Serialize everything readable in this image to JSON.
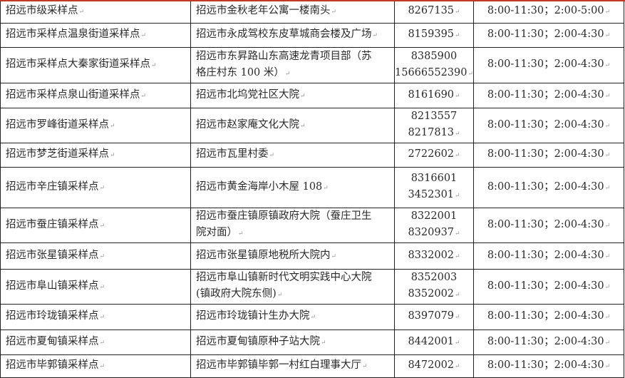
{
  "rows": [
    {
      "site": "招远市级采样点",
      "address": [
        "招远市金秋老年公寓一楼南头"
      ],
      "phone": [
        "8267135"
      ],
      "hours": "8:00-11:30；2:00-5:00"
    },
    {
      "site": "招远市采样点温泉街道采样点",
      "address": [
        "招远市永成驾校东皮草城商会楼及广场"
      ],
      "phone": [
        "8159395"
      ],
      "hours": "8:00-11:30；2:00-4:30"
    },
    {
      "site": "招远市采样点大秦家街道采样点",
      "address": [
        "招远市东昇路山东高速龙青项目部（苏",
        "格庄村东 100 米）"
      ],
      "phone": [
        "8385900",
        "15666552390"
      ],
      "hours": "8:00-11:30；2:00-4:30"
    },
    {
      "site": "招远市采样点泉山街道采样点",
      "address": [
        "招远市北坞党社区大院"
      ],
      "phone": [
        "8161690"
      ],
      "hours": "8:00-11:30；2:00-4:30"
    },
    {
      "site": "招远市罗峰街道采样点",
      "address": [
        "招远市赵家庵文化大院"
      ],
      "phone": [
        "8213557",
        "8217813"
      ],
      "hours": "8:00-11:30；2:00-4:30"
    },
    {
      "site": "招远市梦芝街道采样点",
      "address": [
        "招远市瓦里村委"
      ],
      "phone": [
        "2722602"
      ],
      "hours": "8:00-11:30；2:00-4:30"
    },
    {
      "site": "招远市辛庄镇采样点",
      "address": [
        "招远市黄金海岸小木屋 108"
      ],
      "phone": [
        "8316601",
        "3452301"
      ],
      "hours": "8:00-11:30；2:00-4:30"
    },
    {
      "site": "招远市蚕庄镇采样点",
      "address": [
        "招远市蚕庄镇原镇政府大院（蚕庄卫生",
        "院对面）"
      ],
      "phone": [
        "8322001",
        "8320937"
      ],
      "hours": "8:00-11:30；2:00-4:30"
    },
    {
      "site": "招远市张星镇采样点",
      "address": [
        "招远市张星镇原地税所大院内"
      ],
      "phone": [
        "8332002"
      ],
      "hours": "8:00-11:30；2:00-4:30"
    },
    {
      "site": "招远市阜山镇采样点",
      "address": [
        "招远市阜山镇新时代文明实践中心大院",
        "(镇政府大院东侧)"
      ],
      "phone": [
        "8352003",
        "8352002"
      ],
      "hours": "8:00-11:30；2:00-4:30"
    },
    {
      "site": "招远市玲珑镇采样点",
      "address": [
        "招远市玲珑镇计生办大院"
      ],
      "phone": [
        "8397079"
      ],
      "hours": "8:00-11:30；2:00-4:30"
    },
    {
      "site": "招远市夏甸镇采样点",
      "address": [
        "招远市夏甸镇原种子站大院"
      ],
      "phone": [
        "8442001"
      ],
      "hours": "8:00-11:30；2:00-4:30"
    },
    {
      "site": "招远市毕郭镇采样点",
      "address": [
        "招远市毕郭镇毕郭一村红白理事大厅"
      ],
      "phone": [
        "8472002"
      ],
      "hours": "8:00-11:30；2:00-4:30"
    }
  ]
}
